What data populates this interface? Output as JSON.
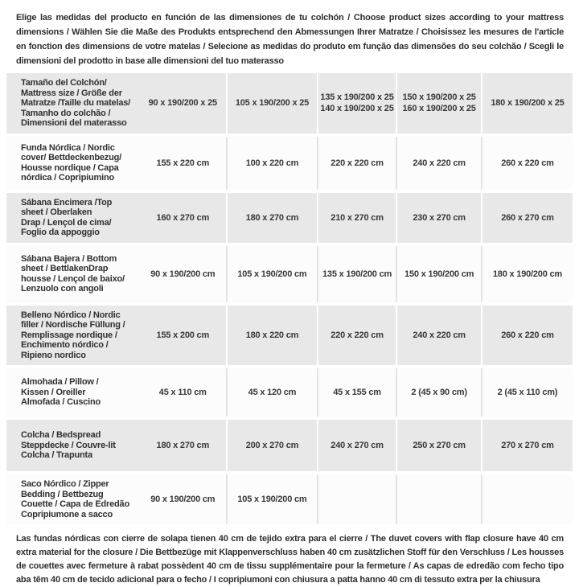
{
  "colors": {
    "row_gray": "#e8e8e8",
    "row_light": "#fcfcfc",
    "text": "#333333"
  },
  "intro": {
    "text": "Elige las medidas del producto en función de las dimensiones de tu colchón / Choose product sizes according to your mattress dimensions / Wählen Sie die Maße des Produkts entsprechend den Abmessungen Ihrer Matratze / Choisissez les mesures de l'article en fonction des dimensions de votre matelas / Selecione as medidas do produto em função das dimensões do seu colchão / Scegli le dimensioni del prodotto in base alle dimensioni del tuo materasso"
  },
  "table": {
    "rows": [
      {
        "label": "Tamaño del Colchón/\nMattress size / Größe der\nMatratze /Taille du matelas/\nTamanho do colchão /\nDimensioni del materasso",
        "values": [
          "90 x 190/200 x 25",
          "105 x 190/200 x 25",
          "135 x 190/200 x 25\n140 x 190/200 x 25",
          "150 x 190/200 x 25\n160 x 190/200 x 25",
          "180 x 190/200 x 25"
        ]
      },
      {
        "label": "Funda Nórdica /  Nordic\ncover/ Bettdeckenbezug/\nHousse nordique  / Capa\nnórdica / Copripiumino",
        "values": [
          "155 x 220 cm",
          "100 x 220 cm",
          "220 x 220 cm",
          "240 x 220 cm",
          "260 x 220 cm"
        ]
      },
      {
        "label": "Sábana Encimera /Top\nsheet / Oberlaken\nDrap / Lençol de cima/\nFoglio da appoggio",
        "values": [
          "160 x 270 cm",
          "180 x 270 cm",
          "210 x 270 cm",
          "230 x 270 cm",
          "260 x 270 cm"
        ]
      },
      {
        "label": "Sábana Bajera / Bottom\nsheet / BettlakenDrap\nhousse / Lençol de baixo/\nLenzuolo con angoli",
        "values": [
          "90 x 190/200 cm",
          "105 x 190/200 cm",
          "135 x 190/200 cm",
          "150 x 190/200 cm",
          "180 x 190/200 cm"
        ]
      },
      {
        "label": "Belleno Nórdico / Nordic\nfiller / Nordische Füllung /\nRemplissage nordique /\nEnchimento nórdico /\nRipieno nordico",
        "values": [
          "155 x 200 cm",
          "180 x 220 cm",
          "220 x 220 cm",
          "240 x 220 cm",
          "260 x 220 cm"
        ]
      },
      {
        "label": "Almohada  / Pillow /\nKissen / Oreiller\nAlmofada / Cuscino",
        "values": [
          "45 x 110 cm",
          "45 x 120 cm",
          "45 x 155 cm",
          "2 (45 x 90 cm)",
          "2 (45 x 110 cm)"
        ]
      },
      {
        "label": "Colcha / Bedspread\nSteppdecke / Couvre-lit\nColcha / Trapunta",
        "values": [
          "180 x 270 cm",
          "200 x 270 cm",
          "240 x 270 cm",
          "250 x 270 cm",
          "270 x 270 cm"
        ]
      },
      {
        "label": "Saco Nórdico / Zipper\nBedding / Bettbezug\nCouette  / Capa de Edredão\nCopripiumone a sacco",
        "values": [
          "90 x 190/200 cm",
          "105 x 190/200 cm",
          "",
          "",
          ""
        ]
      }
    ]
  },
  "note": {
    "text": "Las fundas nórdicas con cierre de solapa tienen 40 cm de tejido extra para el cierre  / The duvet covers with flap closure have 40 cm extra material for the closure / Die Bettbezüge mit Klappenverschluss haben 40 cm zusätzlichen Stoff für den Verschluss / Les housses de couettes avec fermeture à rabat possèdent 40 cm de tissu supplémentaire pour la fermeture / As capas de edredão com fecho tipo aba têm 40 cm de tecido adicional para o fecho / I copripiumoni con chiusura a patta hanno 40 cm di tessuto extra per la chiusura"
  }
}
